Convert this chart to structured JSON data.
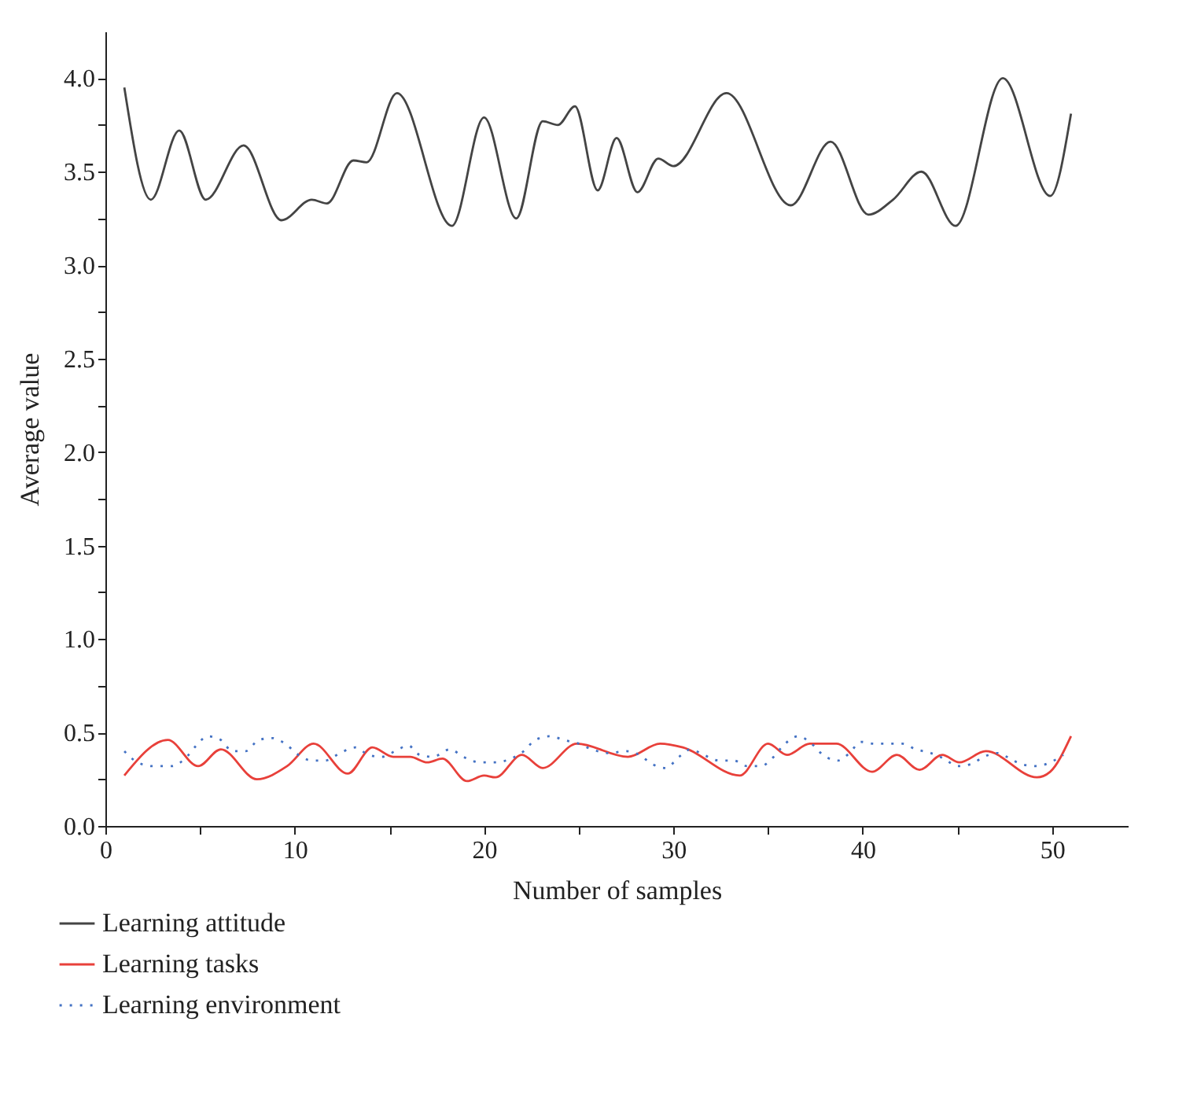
{
  "chart_data": {
    "type": "line",
    "xlabel": "Number of samples",
    "ylabel": "Average value",
    "xlim": [
      0,
      54
    ],
    "ylim": [
      0,
      4.25
    ],
    "xticks": [
      0,
      {
        "value": 5,
        "label": null
      },
      10,
      {
        "value": 15,
        "label": null
      },
      20,
      {
        "value": 25,
        "label": null
      },
      30,
      {
        "value": 35,
        "label": null
      },
      40,
      {
        "value": 45,
        "label": null
      },
      50
    ],
    "yticks": [
      {
        "value": 0,
        "label": "0.0"
      },
      {
        "value": 0.25,
        "label": null
      },
      {
        "value": 0.5,
        "label": "0.5"
      },
      {
        "value": 0.75,
        "label": null
      },
      {
        "value": 1,
        "label": "1.0"
      },
      {
        "value": 1.25,
        "label": null
      },
      {
        "value": 1.5,
        "label": "1.5"
      },
      {
        "value": 1.75,
        "label": null
      },
      {
        "value": 2,
        "label": "2.0"
      },
      {
        "value": 2.25,
        "label": null
      },
      {
        "value": 2.5,
        "label": "2.5"
      },
      {
        "value": 2.75,
        "label": null
      },
      {
        "value": 3,
        "label": "3.0"
      },
      {
        "value": 3.25,
        "label": null
      },
      {
        "value": 3.5,
        "label": "3.5"
      },
      {
        "value": 3.75,
        "label": null
      },
      {
        "value": 4,
        "label": "4.0"
      }
    ],
    "grid": false,
    "legend": "bottom",
    "marker": "none",
    "series": [
      {
        "name": "Learning attitude",
        "color": "#444444",
        "line_style": "solid",
        "x": [
          1.0,
          2.4,
          3.9,
          5.3,
          7.3,
          9.3,
          10.9,
          11.7,
          13.1,
          13.8,
          15.4,
          18.3,
          20.0,
          21.7,
          23.1,
          23.9,
          24.8,
          26.0,
          27.0,
          28.1,
          29.2,
          30.0,
          32.8,
          36.2,
          38.3,
          40.3,
          41.6,
          43.1,
          44.9,
          47.4,
          49.9,
          51.0
        ],
        "values": [
          3.95,
          3.35,
          3.72,
          3.35,
          3.64,
          3.24,
          3.35,
          3.33,
          3.56,
          3.55,
          3.92,
          3.21,
          3.79,
          3.25,
          3.77,
          3.75,
          3.85,
          3.4,
          3.68,
          3.39,
          3.57,
          3.53,
          3.92,
          3.32,
          3.66,
          3.27,
          3.35,
          3.5,
          3.21,
          4.0,
          3.37,
          3.81
        ]
      },
      {
        "name": "Learning tasks",
        "color": "#e8403a",
        "line_style": "solid",
        "x": [
          1.0,
          3.3,
          4.9,
          6.1,
          8.0,
          9.6,
          11.0,
          12.8,
          14.1,
          15.2,
          16.1,
          17.0,
          17.8,
          19.1,
          20.0,
          20.6,
          22.0,
          23.1,
          24.9,
          27.6,
          29.3,
          30.5,
          33.5,
          35.0,
          36.0,
          37.2,
          38.6,
          40.5,
          41.8,
          43.0,
          44.2,
          45.1,
          46.5,
          49.2,
          49.9,
          51.0
        ],
        "values": [
          0.27,
          0.46,
          0.32,
          0.41,
          0.25,
          0.32,
          0.44,
          0.28,
          0.42,
          0.37,
          0.37,
          0.34,
          0.36,
          0.24,
          0.27,
          0.26,
          0.38,
          0.31,
          0.44,
          0.37,
          0.44,
          0.42,
          0.27,
          0.44,
          0.38,
          0.44,
          0.44,
          0.29,
          0.38,
          0.3,
          0.38,
          0.34,
          0.4,
          0.26,
          0.29,
          0.48
        ]
      },
      {
        "name": "Learning environment",
        "color": "#4472c4",
        "line_style": "dotted",
        "x": [
          1.0,
          1.7,
          2.5,
          3.5,
          4.2,
          4.8,
          5.4,
          6.1,
          6.7,
          7.4,
          8.1,
          8.8,
          9.5,
          10.2,
          10.9,
          11.6,
          12.4,
          13.2,
          13.9,
          14.6,
          15.3,
          16.0,
          16.6,
          17.3,
          18.2,
          18.9,
          19.8,
          20.7,
          21.4,
          22.1,
          22.7,
          23.5,
          24.2,
          25.0,
          25.7,
          26.6,
          27.5,
          28.2,
          28.9,
          29.6,
          30.3,
          30.9,
          31.6,
          32.4,
          33.2,
          33.9,
          34.6,
          35.3,
          35.8,
          36.6,
          37.3,
          37.9,
          38.7,
          39.3,
          39.9,
          40.6,
          41.3,
          42.1,
          42.8,
          43.6,
          44.3,
          45.0,
          45.7,
          46.4,
          47.1,
          47.6,
          48.4,
          49.2,
          49.9,
          50.6
        ],
        "values": [
          0.4,
          0.34,
          0.32,
          0.32,
          0.36,
          0.43,
          0.48,
          0.46,
          0.4,
          0.4,
          0.46,
          0.47,
          0.44,
          0.38,
          0.35,
          0.35,
          0.39,
          0.42,
          0.38,
          0.37,
          0.4,
          0.43,
          0.38,
          0.37,
          0.41,
          0.37,
          0.34,
          0.34,
          0.36,
          0.4,
          0.46,
          0.48,
          0.46,
          0.44,
          0.41,
          0.39,
          0.4,
          0.38,
          0.33,
          0.31,
          0.37,
          0.41,
          0.38,
          0.35,
          0.35,
          0.32,
          0.32,
          0.37,
          0.43,
          0.48,
          0.44,
          0.38,
          0.35,
          0.39,
          0.45,
          0.44,
          0.44,
          0.44,
          0.41,
          0.39,
          0.36,
          0.32,
          0.33,
          0.37,
          0.39,
          0.37,
          0.33,
          0.32,
          0.34,
          0.38
        ]
      }
    ]
  }
}
